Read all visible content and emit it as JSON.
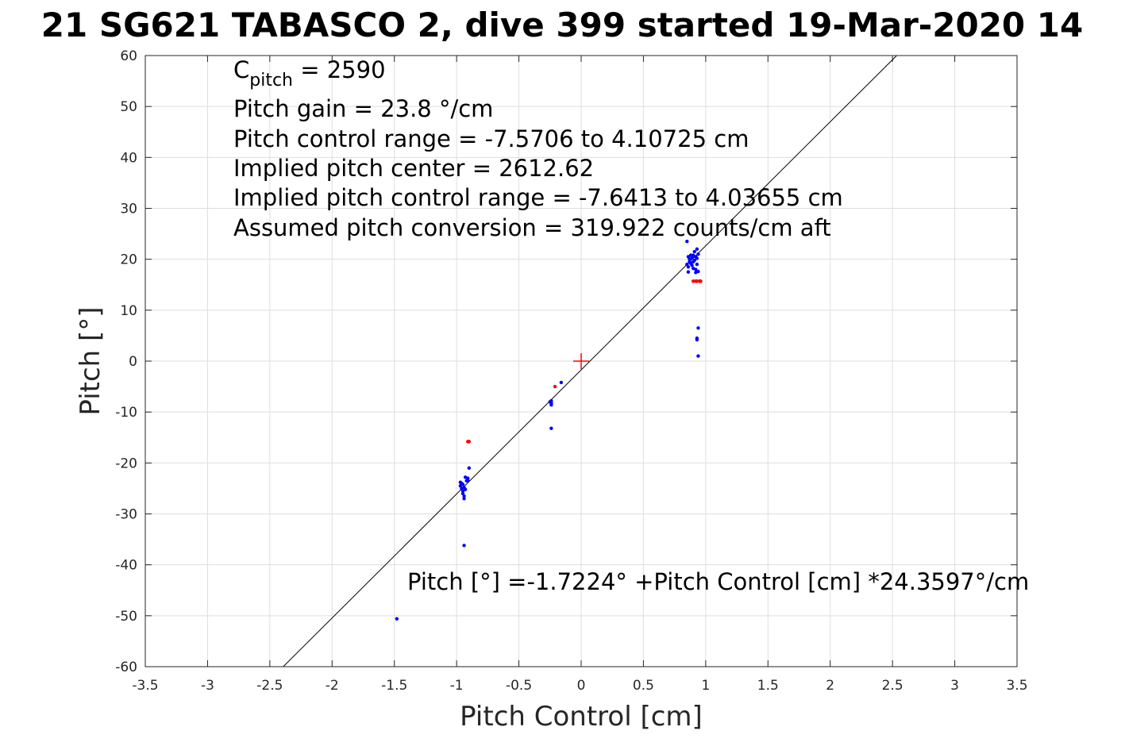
{
  "chart_data": {
    "type": "scatter",
    "title": "21 SG621 TABASCO 2, dive 399 started 19-Mar-2020 14",
    "xlabel": "Pitch Control [cm]",
    "ylabel": "Pitch [°]",
    "xlim": [
      -3.5,
      3.5
    ],
    "ylim": [
      -60,
      60
    ],
    "xticks": [
      "-3.5",
      "-3",
      "-2.5",
      "-2",
      "-1.5",
      "-1",
      "-0.5",
      "0",
      "0.5",
      "1",
      "1.5",
      "2",
      "2.5",
      "3",
      "3.5"
    ],
    "yticks": [
      "60",
      "50",
      "40",
      "30",
      "20",
      "10",
      "0",
      "-10",
      "-20",
      "-30",
      "-40",
      "-50",
      "-60"
    ],
    "grid": true,
    "colors": {
      "good": "#0000ff",
      "flagged": "#ff0000",
      "fit_line": "#000000",
      "center_marker": "#ff0000"
    },
    "annotations": {
      "c_pitch_prefix": "C",
      "c_pitch_sub": "pitch",
      "c_pitch_value": " = 2590",
      "lines": [
        "Pitch gain = 23.8 °/cm",
        "Pitch control range = -7.5706 to 4.10725 cm",
        "Implied pitch center = 2612.62",
        "Implied pitch control range = -7.6413 to 4.03655 cm",
        "Assumed pitch conversion = 319.922 counts/cm aft"
      ],
      "fit_text": "Pitch [°] =-1.7224° +Pitch Control [cm] *24.3597°/cm"
    },
    "fit_line": {
      "intercept": -1.7224,
      "slope": 24.3597
    },
    "center_marker": {
      "x": 0,
      "y": 0
    },
    "series": [
      {
        "color": "#0000ff",
        "points": [
          [
            0.85,
            23.5
          ],
          [
            0.85,
            19.0
          ],
          [
            0.86,
            20.5
          ],
          [
            0.86,
            18.5
          ],
          [
            0.86,
            17.5
          ],
          [
            0.87,
            20.0
          ],
          [
            0.87,
            19.5
          ],
          [
            0.88,
            20.8
          ],
          [
            0.88,
            19.2
          ],
          [
            0.89,
            20.3
          ],
          [
            0.89,
            18.8
          ],
          [
            0.9,
            19.5
          ],
          [
            0.9,
            20.8
          ],
          [
            0.9,
            18.2
          ],
          [
            0.91,
            21.5
          ],
          [
            0.91,
            19.8
          ],
          [
            0.92,
            20.5
          ],
          [
            0.92,
            18.0
          ],
          [
            0.92,
            17.4
          ],
          [
            0.93,
            22.0
          ],
          [
            0.93,
            20.2
          ],
          [
            0.93,
            19.0
          ],
          [
            0.94,
            21.0
          ],
          [
            0.94,
            17.6
          ],
          [
            0.94,
            6.5
          ],
          [
            0.93,
            4.5
          ],
          [
            0.93,
            4.2
          ],
          [
            0.94,
            1.0
          ],
          [
            -0.16,
            -4.2
          ],
          [
            -0.24,
            -7.8
          ],
          [
            -0.24,
            -8.2
          ],
          [
            -0.24,
            -8.6
          ],
          [
            -0.25,
            -8.0
          ],
          [
            -0.24,
            -13.2
          ],
          [
            -0.97,
            -23.8
          ],
          [
            -0.97,
            -24.5
          ],
          [
            -0.96,
            -24.0
          ],
          [
            -0.96,
            -25.0
          ],
          [
            -0.95,
            -24.2
          ],
          [
            -0.95,
            -25.5
          ],
          [
            -0.95,
            -26.0
          ],
          [
            -0.94,
            -24.8
          ],
          [
            -0.94,
            -26.5
          ],
          [
            -0.94,
            -27.0
          ],
          [
            -0.93,
            -22.8
          ],
          [
            -0.93,
            -25.2
          ],
          [
            -0.92,
            -23.5
          ],
          [
            -0.91,
            -23.0
          ],
          [
            -0.91,
            -23.4
          ],
          [
            -0.9,
            -21.0
          ],
          [
            -0.94,
            -36.2
          ],
          [
            -1.48,
            -50.6
          ]
        ]
      },
      {
        "color": "#ff0000",
        "points": [
          [
            0.9,
            15.7
          ],
          [
            0.92,
            15.7
          ],
          [
            0.93,
            15.7
          ],
          [
            0.95,
            15.7
          ],
          [
            0.96,
            15.7
          ],
          [
            -0.91,
            -15.8
          ],
          [
            -0.9,
            -15.8
          ],
          [
            -0.21,
            -5.0
          ]
        ]
      }
    ]
  }
}
